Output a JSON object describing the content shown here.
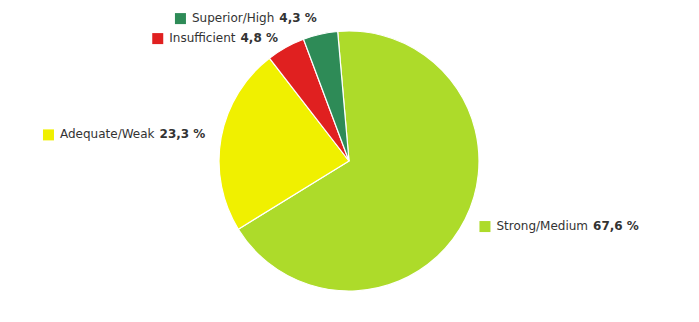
{
  "chart_data": {
    "type": "pie",
    "categories": [
      "Strong/Medium",
      "Adequate/Weak",
      "Insufficient",
      "Superior/High"
    ],
    "values": [
      67.6,
      23.3,
      4.8,
      4.3
    ],
    "colors": [
      "#addb2a",
      "#f0f000",
      "#e02020",
      "#2e8b57"
    ],
    "data_labels": true,
    "value_labels": [
      "67,6 %",
      "23,3 %",
      "4,8 %",
      "4,3 %"
    ]
  }
}
